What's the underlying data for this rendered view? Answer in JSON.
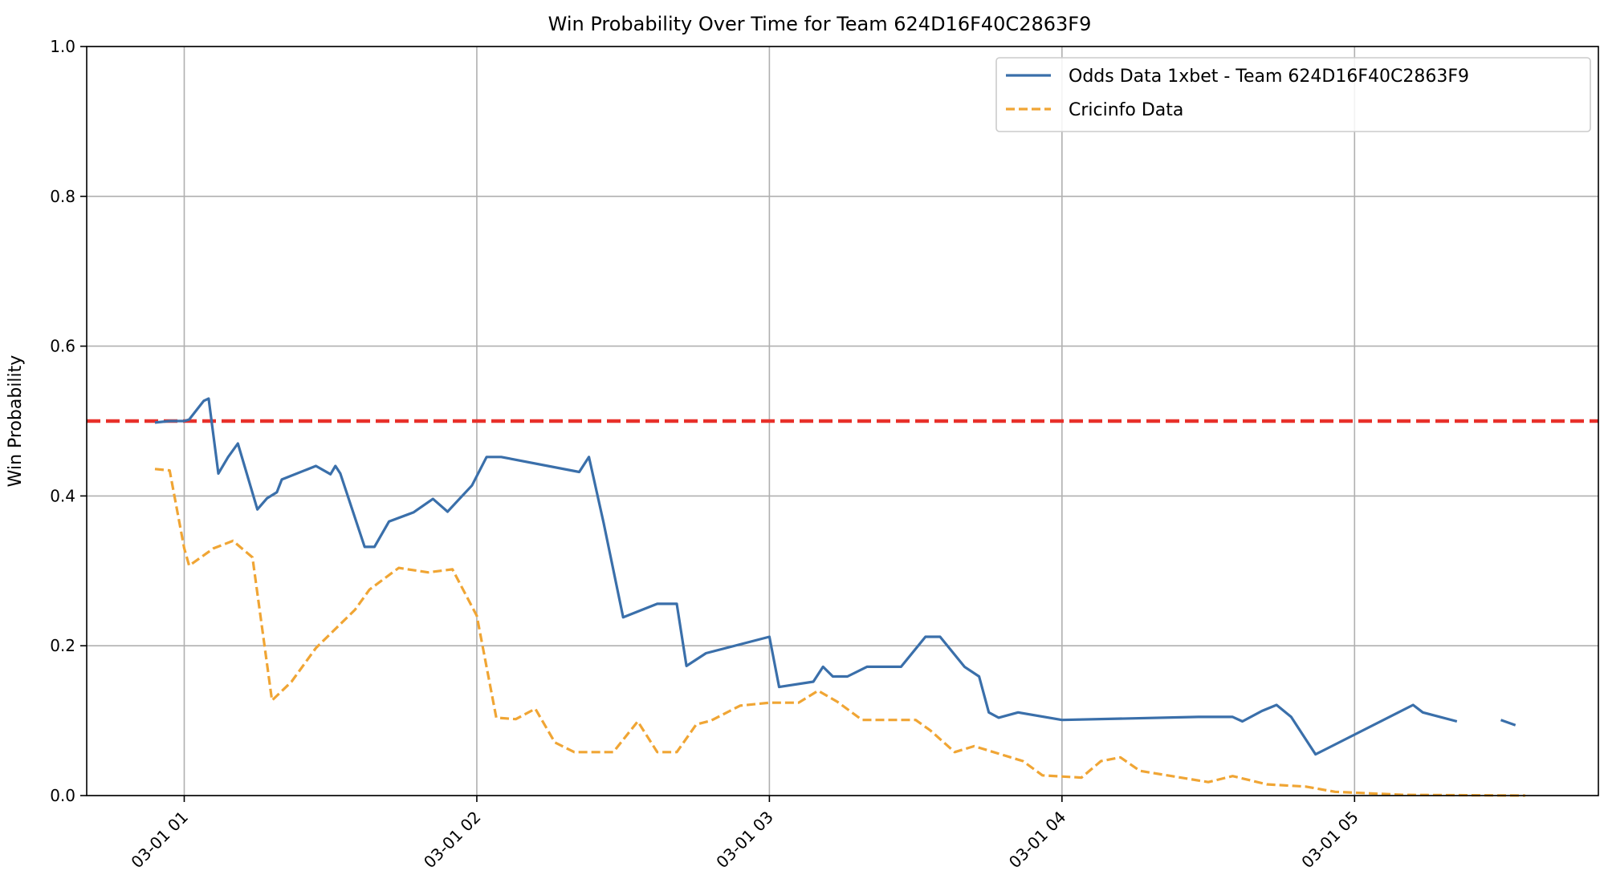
{
  "chart_data": {
    "type": "line",
    "title": "Win Probability Over Time for Team 624D16F40C2863F9",
    "xlabel": "",
    "ylabel": "Win Probability",
    "ylim": [
      0.0,
      1.0
    ],
    "xlim": [
      "2024-03-01 00:40",
      "2024-03-01 05:50"
    ],
    "yticks": [
      "0.0",
      "0.2",
      "0.4",
      "0.6",
      "0.8",
      "1.0"
    ],
    "xticks": [
      {
        "t": "2024-03-01 01:00",
        "label": "03-01 01"
      },
      {
        "t": "2024-03-01 02:00",
        "label": "03-01 02"
      },
      {
        "t": "2024-03-01 03:00",
        "label": "03-01 03"
      },
      {
        "t": "2024-03-01 04:00",
        "label": "03-01 04"
      },
      {
        "t": "2024-03-01 05:00",
        "label": "03-01 05"
      }
    ],
    "grid": true,
    "legend_position": "top-right",
    "reference_line": {
      "y": 0.5,
      "color": "#e8302a",
      "style": "dashed"
    },
    "series": [
      {
        "name": "Odds Data 1xbet - Team 624D16F40C2863F9",
        "color": "#3a6faa",
        "style": "solid",
        "points": [
          [
            "2024-03-01 00:54",
            0.498
          ],
          [
            "2024-03-01 00:57",
            0.5
          ],
          [
            "2024-03-01 01:00",
            0.5
          ],
          [
            "2024-03-01 01:01",
            0.502
          ],
          [
            "2024-03-01 01:04",
            0.527
          ],
          [
            "2024-03-01 01:05",
            0.53
          ],
          [
            "2024-03-01 01:07",
            0.43
          ],
          [
            "2024-03-01 01:09",
            0.452
          ],
          [
            "2024-03-01 01:11",
            0.47
          ],
          [
            "2024-03-01 01:15",
            0.382
          ],
          [
            "2024-03-01 01:17",
            0.397
          ],
          [
            "2024-03-01 01:19",
            0.405
          ],
          [
            "2024-03-01 01:20",
            0.422
          ],
          [
            "2024-03-01 01:27",
            0.44
          ],
          [
            "2024-03-01 01:30",
            0.429
          ],
          [
            "2024-03-01 01:31",
            0.44
          ],
          [
            "2024-03-01 01:32",
            0.43
          ],
          [
            "2024-03-01 01:37",
            0.332
          ],
          [
            "2024-03-01 01:39",
            0.332
          ],
          [
            "2024-03-01 01:42",
            0.366
          ],
          [
            "2024-03-01 01:47",
            0.378
          ],
          [
            "2024-03-01 01:51",
            0.396
          ],
          [
            "2024-03-01 01:54",
            0.379
          ],
          [
            "2024-03-01 01:56",
            0.393
          ],
          [
            "2024-03-01 01:59",
            0.414
          ],
          [
            "2024-03-01 02:02",
            0.452
          ],
          [
            "2024-03-01 02:05",
            0.452
          ],
          [
            "2024-03-01 02:21",
            0.432
          ],
          [
            "2024-03-01 02:23",
            0.452
          ],
          [
            "2024-03-01 02:26",
            0.364
          ],
          [
            "2024-03-01 02:30",
            0.238
          ],
          [
            "2024-03-01 02:37",
            0.256
          ],
          [
            "2024-03-01 02:41",
            0.256
          ],
          [
            "2024-03-01 02:43",
            0.173
          ],
          [
            "2024-03-01 02:47",
            0.19
          ],
          [
            "2024-03-01 03:00",
            0.212
          ],
          [
            "2024-03-01 03:02",
            0.145
          ],
          [
            "2024-03-01 03:09",
            0.152
          ],
          [
            "2024-03-01 03:11",
            0.172
          ],
          [
            "2024-03-01 03:13",
            0.159
          ],
          [
            "2024-03-01 03:16",
            0.159
          ],
          [
            "2024-03-01 03:20",
            0.172
          ],
          [
            "2024-03-01 03:27",
            0.172
          ],
          [
            "2024-03-01 03:32",
            0.212
          ],
          [
            "2024-03-01 03:35",
            0.212
          ],
          [
            "2024-03-01 03:40",
            0.172
          ],
          [
            "2024-03-01 03:43",
            0.159
          ],
          [
            "2024-03-01 03:45",
            0.111
          ],
          [
            "2024-03-01 03:47",
            0.104
          ],
          [
            "2024-03-01 03:51",
            0.111
          ],
          [
            "2024-03-01 04:00",
            0.101
          ],
          [
            "2024-03-01 04:28",
            0.105
          ],
          [
            "2024-03-01 04:35",
            0.105
          ],
          [
            "2024-03-01 04:37",
            0.099
          ],
          [
            "2024-03-01 04:41",
            0.113
          ],
          [
            "2024-03-01 04:44",
            0.121
          ],
          [
            "2024-03-01 04:47",
            0.105
          ],
          [
            "2024-03-01 04:52",
            0.055
          ],
          [
            "2024-03-01 05:12",
            0.121
          ],
          [
            "2024-03-01 05:14",
            0.111
          ],
          [
            "2024-03-01 05:21",
            0.099
          ],
          null,
          [
            "2024-03-01 05:30",
            0.101
          ],
          [
            "2024-03-01 05:33",
            0.094
          ]
        ]
      },
      {
        "name": "Cricinfo Data",
        "color": "#f0a534",
        "style": "dashed",
        "points": [
          [
            "2024-03-01 00:54",
            0.436
          ],
          [
            "2024-03-01 00:57",
            0.434
          ],
          [
            "2024-03-01 01:00",
            0.33
          ],
          [
            "2024-03-01 01:01",
            0.307
          ],
          [
            "2024-03-01 01:06",
            0.33
          ],
          [
            "2024-03-01 01:10",
            0.34
          ],
          [
            "2024-03-01 01:14",
            0.318
          ],
          [
            "2024-03-01 01:18",
            0.127
          ],
          [
            "2024-03-01 01:22",
            0.152
          ],
          [
            "2024-03-01 01:27",
            0.197
          ],
          [
            "2024-03-01 01:35",
            0.248
          ],
          [
            "2024-03-01 01:38",
            0.275
          ],
          [
            "2024-03-01 01:44",
            0.304
          ],
          [
            "2024-03-01 01:50",
            0.298
          ],
          [
            "2024-03-01 01:55",
            0.302
          ],
          [
            "2024-03-01 02:00",
            0.24
          ],
          [
            "2024-03-01 02:04",
            0.104
          ],
          [
            "2024-03-01 02:08",
            0.102
          ],
          [
            "2024-03-01 02:12",
            0.116
          ],
          [
            "2024-03-01 02:16",
            0.071
          ],
          [
            "2024-03-01 02:20",
            0.058
          ],
          [
            "2024-03-01 02:28",
            0.058
          ],
          [
            "2024-03-01 02:33",
            0.099
          ],
          [
            "2024-03-01 02:37",
            0.058
          ],
          [
            "2024-03-01 02:41",
            0.058
          ],
          [
            "2024-03-01 02:45",
            0.095
          ],
          [
            "2024-03-01 02:48",
            0.1
          ],
          [
            "2024-03-01 02:54",
            0.12
          ],
          [
            "2024-03-01 03:00",
            0.124
          ],
          [
            "2024-03-01 03:06",
            0.124
          ],
          [
            "2024-03-01 03:10",
            0.14
          ],
          [
            "2024-03-01 03:14",
            0.125
          ],
          [
            "2024-03-01 03:19",
            0.101
          ],
          [
            "2024-03-01 03:30",
            0.101
          ],
          [
            "2024-03-01 03:33",
            0.087
          ],
          [
            "2024-03-01 03:38",
            0.058
          ],
          [
            "2024-03-01 03:42",
            0.066
          ],
          [
            "2024-03-01 03:52",
            0.046
          ],
          [
            "2024-03-01 03:56",
            0.027
          ],
          [
            "2024-03-01 04:04",
            0.024
          ],
          [
            "2024-03-01 04:08",
            0.046
          ],
          [
            "2024-03-01 04:12",
            0.051
          ],
          [
            "2024-03-01 04:16",
            0.033
          ],
          [
            "2024-03-01 04:30",
            0.018
          ],
          [
            "2024-03-01 04:35",
            0.026
          ],
          [
            "2024-03-01 04:42",
            0.015
          ],
          [
            "2024-03-01 04:50",
            0.012
          ],
          [
            "2024-03-01 04:56",
            0.005
          ],
          [
            "2024-03-01 05:10",
            0.001
          ],
          [
            "2024-03-01 05:35",
            0.0
          ]
        ]
      }
    ]
  }
}
